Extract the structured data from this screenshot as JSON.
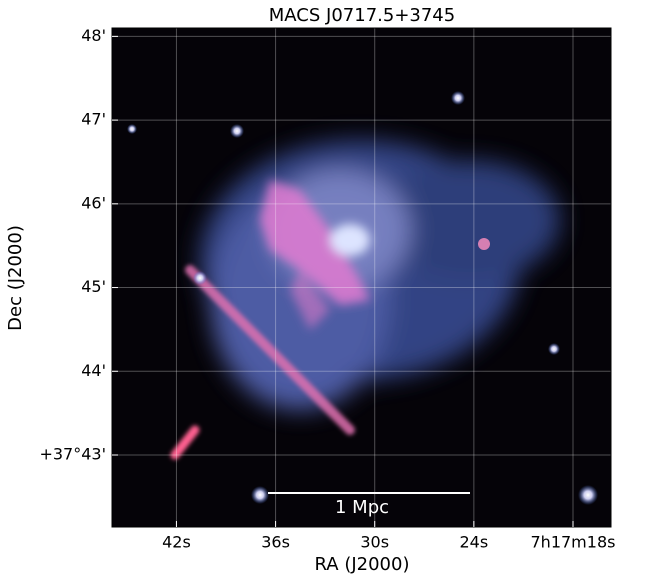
{
  "chart_data": {
    "type": "image",
    "title": "MACS J0717.5+3745",
    "xlabel": "RA (J2000)",
    "ylabel": "Dec (J2000)",
    "xlim": [
      45.9,
      15.7
    ],
    "ylim": [
      42.14,
      48.1
    ],
    "xticks": [
      {
        "value": 42,
        "label": "42s"
      },
      {
        "value": 36,
        "label": "36s"
      },
      {
        "value": 30,
        "label": "30s"
      },
      {
        "value": 24,
        "label": "24s"
      },
      {
        "value": 18,
        "label": "7h17m18s"
      }
    ],
    "yticks": [
      {
        "value": 48,
        "label": "48'"
      },
      {
        "value": 47,
        "label": "47'"
      },
      {
        "value": 46,
        "label": "46'"
      },
      {
        "value": 45,
        "label": "45'"
      },
      {
        "value": 44,
        "label": "44'"
      },
      {
        "value": 43,
        "label": "+37°43'"
      }
    ],
    "grid": true,
    "annotation": "1 Mpc"
  }
}
